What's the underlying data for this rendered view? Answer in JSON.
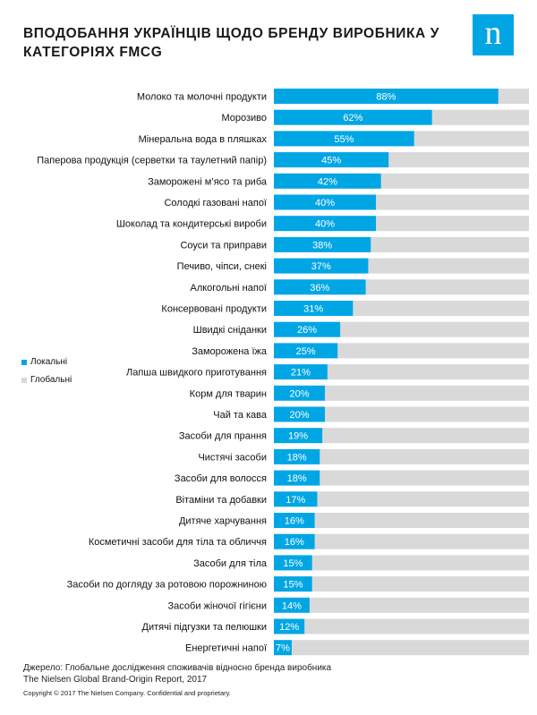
{
  "title": "ВПОДОБАННЯ УКРАЇНЦІВ ЩОДО БРЕНДУ ВИРОБНИКА У КАТЕГОРІЯХ FMCG",
  "logo": {
    "letter": "n",
    "color": "#00a6e4"
  },
  "legend": {
    "local": "Локальні",
    "global": "Глобальні"
  },
  "colors": {
    "local": "#00a6e4",
    "global": "#d9d9d9"
  },
  "footer": {
    "source_line1": "Джерело: Глобальне  дослідження споживачів відносно бренда виробника",
    "source_line2": "The Nielsen Global Brand-Origin  Report,  2017",
    "copyright": "Copyright © 2017 The Nielsen Company. Confidential and proprietary."
  },
  "chart_data": {
    "type": "bar",
    "orientation": "horizontal",
    "stacked": true,
    "categories": [
      "Молоко та молочні продукти",
      "Морозиво",
      "Мінеральна  вода в пляшках",
      "Паперова продукція (серветки та таулетний папір)",
      "Заморожені м’ясо та риба",
      "Солодкі газовані напої",
      "Шоколад та кондитерські вироби",
      "Соуси та приправи",
      "Печиво, чіпси, снекі",
      "Алкогольні напої",
      "Консервовані продукти",
      "Швидкі сніданки",
      "Заморожена їжа",
      "Лапша швидкого приготування",
      "Корм для тварин",
      "Чай та кава",
      "Засоби для прання",
      "Чистячі засоби",
      "Засоби для волосся",
      "Вітаміни та добавки",
      "Дитяче харчування",
      "Косметичні засоби для тіла та обличчя",
      "Засоби для тіла",
      "Засоби по догляду за ротовою порожниною",
      "Засоби жіночої гігієни",
      "Дитячі підгузки та пелюшки",
      "Енергетичні напої"
    ],
    "series": [
      {
        "name": "Локальні",
        "values": [
          88,
          62,
          55,
          45,
          42,
          40,
          40,
          38,
          37,
          36,
          31,
          26,
          25,
          21,
          20,
          20,
          19,
          18,
          18,
          17,
          16,
          16,
          15,
          15,
          14,
          12,
          7
        ]
      },
      {
        "name": "Глобальні",
        "values": [
          12,
          38,
          45,
          55,
          58,
          60,
          60,
          62,
          63,
          64,
          69,
          74,
          75,
          79,
          80,
          80,
          81,
          82,
          82,
          83,
          84,
          84,
          85,
          85,
          86,
          88,
          93
        ]
      }
    ],
    "value_suffix": "%",
    "xlim": [
      0,
      100
    ],
    "grid": false,
    "legend_position": "left"
  }
}
